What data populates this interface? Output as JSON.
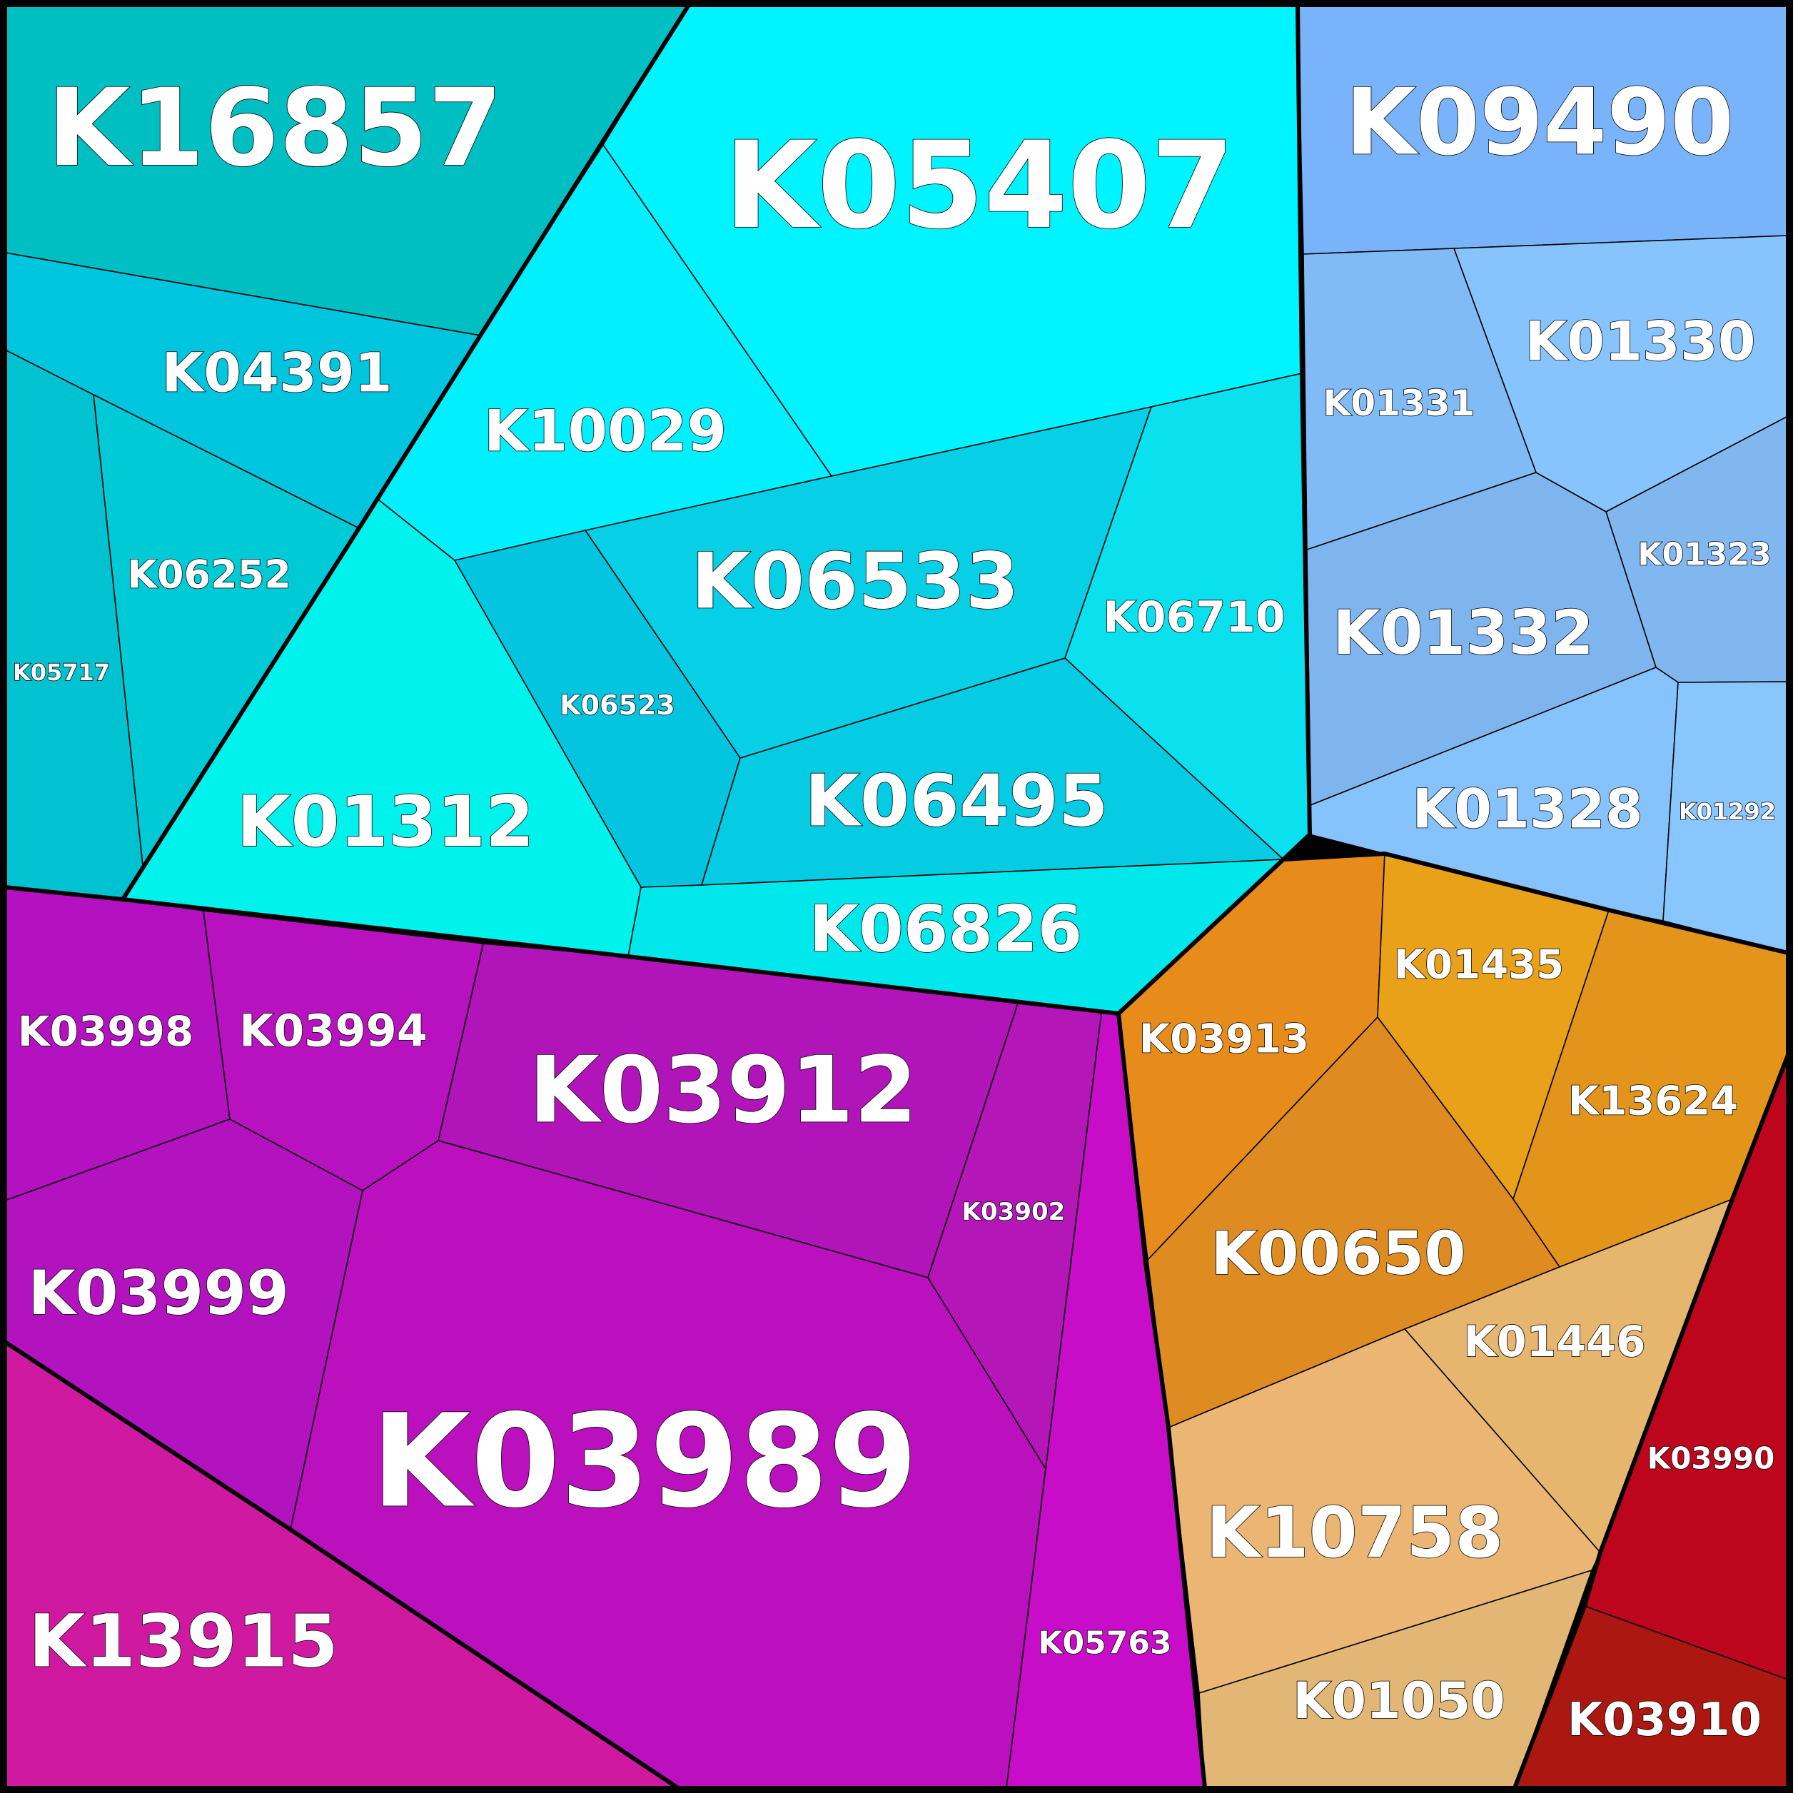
{
  "groups": [
    {
      "id": "cyan",
      "cells": [
        {
          "label": "K16857",
          "color": "#00bfc3",
          "weight": 0.6
        },
        {
          "label": "K05407",
          "color": "#00f4ff",
          "weight": 1.0
        },
        {
          "label": "K04391",
          "color": "#00c5df",
          "weight": 0.24
        },
        {
          "label": "K10029",
          "color": "#00f0ff",
          "weight": 0.3
        },
        {
          "label": "K06252",
          "color": "#00cad5",
          "weight": 0.12
        },
        {
          "label": "K05717",
          "color": "#00c2d0",
          "weight": 0.03
        },
        {
          "label": "K06533",
          "color": "#06cfe6",
          "weight": 0.45
        },
        {
          "label": "K06710",
          "color": "#0be1ee",
          "weight": 0.17
        },
        {
          "label": "K06523",
          "color": "#03c5e0",
          "weight": 0.04
        },
        {
          "label": "K01312",
          "color": "#00f2ec",
          "weight": 0.37
        },
        {
          "label": "K06495",
          "color": "#05cce2",
          "weight": 0.37
        },
        {
          "label": "K06826",
          "color": "#00e8ec",
          "weight": 0.25
        }
      ]
    },
    {
      "id": "blue",
      "cells": [
        {
          "label": "K09490",
          "color": "#79b4fb",
          "weight": 0.6
        },
        {
          "label": "K01330",
          "color": "#87c3fd",
          "weight": 0.3
        },
        {
          "label": "K01331",
          "color": "#80bbf6",
          "weight": 0.07
        },
        {
          "label": "K01323",
          "color": "#80b7ef",
          "weight": 0.04
        },
        {
          "label": "K01332",
          "color": "#7fb5ee",
          "weight": 0.32
        },
        {
          "label": "K01328",
          "color": "#86c2fb",
          "weight": 0.25
        },
        {
          "label": "K01292",
          "color": "#89c6fd",
          "weight": 0.03
        }
      ]
    },
    {
      "id": "purple",
      "cells": [
        {
          "label": "K03998",
          "color": "#b411c0",
          "weight": 0.12
        },
        {
          "label": "K03994",
          "color": "#b812c0",
          "weight": 0.16
        },
        {
          "label": "K03912",
          "color": "#b114b8",
          "weight": 0.6
        },
        {
          "label": "K03902",
          "color": "#b416b8",
          "weight": 0.04
        },
        {
          "label": "K03999",
          "color": "#b312bf",
          "weight": 0.27
        },
        {
          "label": "K03989",
          "color": "#bb10bd",
          "weight": 1.3
        },
        {
          "label": "K05763",
          "color": "#c70dc8",
          "weight": 0.07
        },
        {
          "label": "K13915",
          "color": "#d019a1",
          "weight": 0.42
        }
      ]
    },
    {
      "id": "orange",
      "cells": [
        {
          "label": "K03913",
          "color": "#e78c1b",
          "weight": 0.1
        },
        {
          "label": "K01435",
          "color": "#e8a118",
          "weight": 0.12
        },
        {
          "label": "K13624",
          "color": "#e3951b",
          "weight": 0.12
        },
        {
          "label": "K00650",
          "color": "#de8b22",
          "weight": 0.32
        },
        {
          "label": "K01446",
          "color": "#e6b66e",
          "weight": 0.12
        },
        {
          "label": "K10758",
          "color": "#ebb673",
          "weight": 0.37
        },
        {
          "label": "K01050",
          "color": "#e2b674",
          "weight": 0.2
        }
      ]
    },
    {
      "id": "red",
      "cells": [
        {
          "label": "K03990",
          "color": "#bd051d",
          "weight": 0.06
        },
        {
          "label": "K03910",
          "color": "#ac1711",
          "weight": 0.12
        }
      ]
    }
  ]
}
